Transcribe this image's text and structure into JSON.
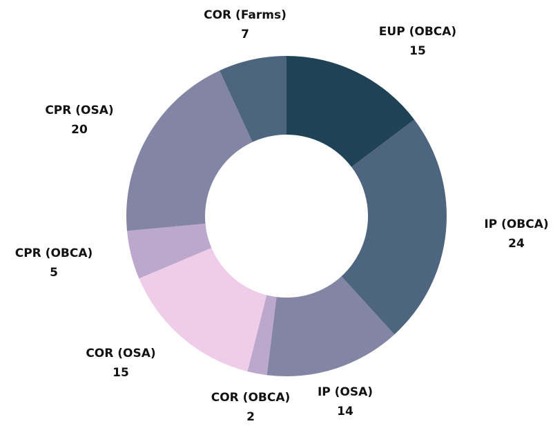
{
  "chart_data": {
    "type": "donut",
    "categories": [
      "EUP (OBCA)",
      "IP (OBCA)",
      "IP (OSA)",
      "COR (OBCA)",
      "COR (OSA)",
      "CPR (OBCA)",
      "CPR (OSA)",
      "COR (Farms)"
    ],
    "values": [
      15,
      24,
      14,
      2,
      15,
      5,
      20,
      7
    ],
    "colors": [
      "#1f4257",
      "#4e6580",
      "#8385a5",
      "#bca8cc",
      "#efcde9",
      "#bca8cc",
      "#8385a5",
      "#4e6580"
    ]
  }
}
